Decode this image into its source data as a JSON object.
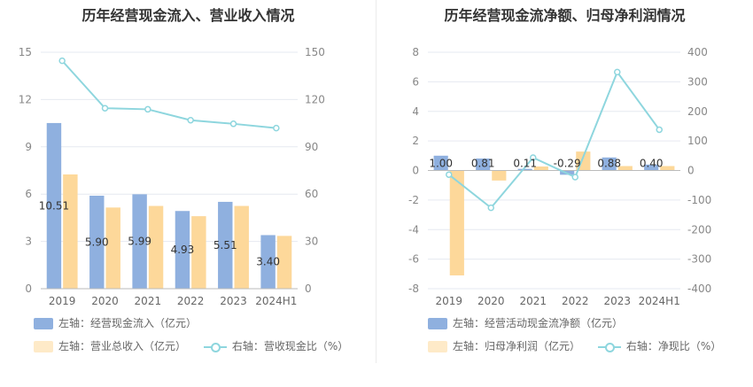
{
  "left": {
    "title": "历年经营现金流入、营业收入情况",
    "legend": [
      {
        "label": "左轴：经营现金流入（亿元）",
        "color": "#8fb0df"
      },
      {
        "label": "左轴：营业总收入（亿元）",
        "color": "#fdd89a"
      },
      {
        "label": "右轴：营收现金比（%）",
        "color": "#8ed6de"
      }
    ]
  },
  "right": {
    "title": "历年经营现金流净额、归母净利润情况",
    "legend": [
      {
        "label": "左轴：经营活动现金流净额（亿元）",
        "color": "#8fb0df"
      },
      {
        "label": "左轴：归母净利润（亿元）",
        "color": "#fdd89a"
      },
      {
        "label": "右轴：净现比（%）",
        "color": "#8ed6de"
      }
    ]
  },
  "chart_data": [
    {
      "type": "bar",
      "title": "历年经营现金流入、营业收入情况",
      "categories": [
        "2019",
        "2020",
        "2021",
        "2022",
        "2023",
        "2024H1"
      ],
      "y_left": {
        "ylim": [
          0,
          15
        ],
        "ticks": [
          "0",
          "3",
          "6",
          "9",
          "12",
          "15"
        ]
      },
      "y_right": {
        "ylim": [
          0,
          150
        ],
        "ticks": [
          "0",
          "30",
          "60",
          "90",
          "120",
          "150"
        ]
      },
      "series": [
        {
          "name": "左轴：经营现金流入（亿元）",
          "type": "bar",
          "axis": "left",
          "color": "#8fb0df",
          "values": [
            10.51,
            5.9,
            5.99,
            4.93,
            5.51,
            3.4
          ],
          "labels": [
            "10.51",
            "5.90",
            "5.99",
            "4.93",
            "5.51",
            "3.40"
          ]
        },
        {
          "name": "左轴：营业总收入（亿元）",
          "type": "bar",
          "axis": "left",
          "color": "#fdd89a",
          "values": [
            7.25,
            5.15,
            5.25,
            4.6,
            5.25,
            3.35
          ]
        },
        {
          "name": "右轴：营收现金比（%）",
          "type": "line",
          "axis": "right",
          "color": "#8ed6de",
          "values": [
            144.6,
            114.5,
            113.8,
            106.9,
            104.6,
            101.9
          ]
        }
      ]
    },
    {
      "type": "bar",
      "title": "历年经营现金流净额、归母净利润情况",
      "categories": [
        "2019",
        "2020",
        "2021",
        "2022",
        "2023",
        "2024H1"
      ],
      "y_left": {
        "ylim": [
          -8,
          8
        ],
        "ticks": [
          "-8",
          "-6",
          "-4",
          "-2",
          "0",
          "2",
          "4",
          "6",
          "8"
        ]
      },
      "y_right": {
        "ylim": [
          -400,
          400
        ],
        "ticks": [
          "-400",
          "-300",
          "-200",
          "-100",
          "0",
          "100",
          "200",
          "300",
          "400"
        ]
      },
      "series": [
        {
          "name": "左轴：经营活动现金流净额（亿元）",
          "type": "bar",
          "axis": "left",
          "color": "#8fb0df",
          "values": [
            1.0,
            0.81,
            0.11,
            -0.29,
            0.88,
            0.4
          ],
          "labels": [
            "1.00",
            "0.81",
            "0.11",
            "-0.29",
            "0.88",
            "0.40"
          ]
        },
        {
          "name": "左轴：归母净利润（亿元）",
          "type": "bar",
          "axis": "left",
          "color": "#fdd89a",
          "values": [
            -7.1,
            -0.68,
            0.27,
            1.28,
            0.3,
            0.3
          ]
        },
        {
          "name": "右轴：净现比（%）",
          "type": "line",
          "axis": "right",
          "color": "#8ed6de",
          "values": [
            -14.1,
            -126.3,
            43.4,
            -22.5,
            332.9,
            138.0
          ]
        }
      ]
    }
  ]
}
